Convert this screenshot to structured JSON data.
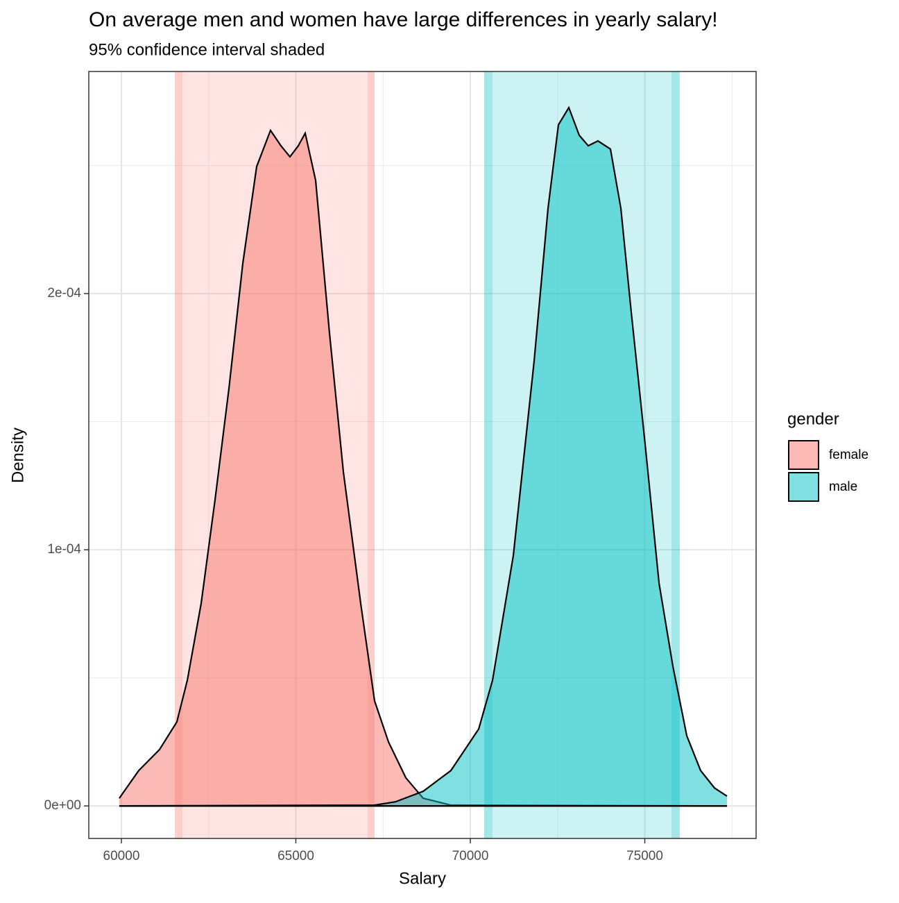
{
  "chart_data": {
    "type": "density",
    "title": "On average men and women have large differences in yearly salary!",
    "subtitle": "95% confidence interval shaded",
    "x_label": "Salary",
    "y_label": "Density",
    "legend_title": "gender",
    "legend_position": "right",
    "grid": true,
    "xlim": [
      59066,
      78190
    ],
    "ylim": [
      -1.27e-05,
      0.0002867
    ],
    "xticks": [
      60000,
      65000,
      70000,
      75000
    ],
    "xminor": [
      62500,
      67500,
      72500,
      77500
    ],
    "yticks": [
      {
        "value": 0,
        "label": "0e+00"
      },
      {
        "value": 0.0001,
        "label": "1e-04"
      },
      {
        "value": 0.0002,
        "label": "2e-04"
      }
    ],
    "yminor": [
      5e-05,
      0.00015,
      0.00025
    ],
    "series": [
      {
        "name": "female",
        "color": "#F8766D",
        "bands": [
          [
            61531,
            67256
          ],
          [
            61531,
            61750
          ],
          [
            67050,
            67256
          ]
        ],
        "x": [
          59940,
          60497,
          61093,
          61590,
          61889,
          62286,
          62684,
          63082,
          63479,
          63877,
          64274,
          64573,
          64831,
          65070,
          65268,
          65567,
          65964,
          66362,
          66859,
          67256,
          67654,
          68151,
          68648,
          69443,
          77356
        ],
        "values": [
          3e-06,
          1.38e-05,
          2.2e-05,
          3.28e-05,
          4.9e-05,
          7.9e-05,
          0.0001195,
          0.0001629,
          0.0002117,
          0.0002496,
          0.0002637,
          0.0002577,
          0.0002534,
          0.0002577,
          0.0002626,
          0.0002442,
          0.0001846,
          0.0001304,
          7.9e-05,
          4.1e-05,
          2.5e-05,
          1.1e-05,
          3e-06,
          3e-07,
          0
        ]
      },
      {
        "name": "male",
        "color": "#00BFC4",
        "bands": [
          [
            70398,
            76004
          ],
          [
            70398,
            70636
          ],
          [
            75765,
            76004
          ]
        ],
        "x": [
          59940,
          67256,
          67853,
          68648,
          69443,
          70239,
          70636,
          71233,
          71829,
          72227,
          72525,
          72823,
          73121,
          73380,
          73658,
          74016,
          74314,
          74612,
          75010,
          75408,
          75805,
          76203,
          76600,
          76998,
          77356
        ],
        "values": [
          0,
          3e-07,
          1.6e-06,
          5.7e-06,
          1.38e-05,
          3e-05,
          4.9e-05,
          9.78e-05,
          0.0001737,
          0.0002333,
          0.0002659,
          0.0002726,
          0.0002618,
          0.0002577,
          0.0002596,
          0.0002564,
          0.0002333,
          0.0001927,
          0.0001412,
          8.7e-05,
          5.45e-05,
          2.74e-05,
          1.38e-05,
          7e-06,
          3.8e-06
        ]
      }
    ]
  }
}
